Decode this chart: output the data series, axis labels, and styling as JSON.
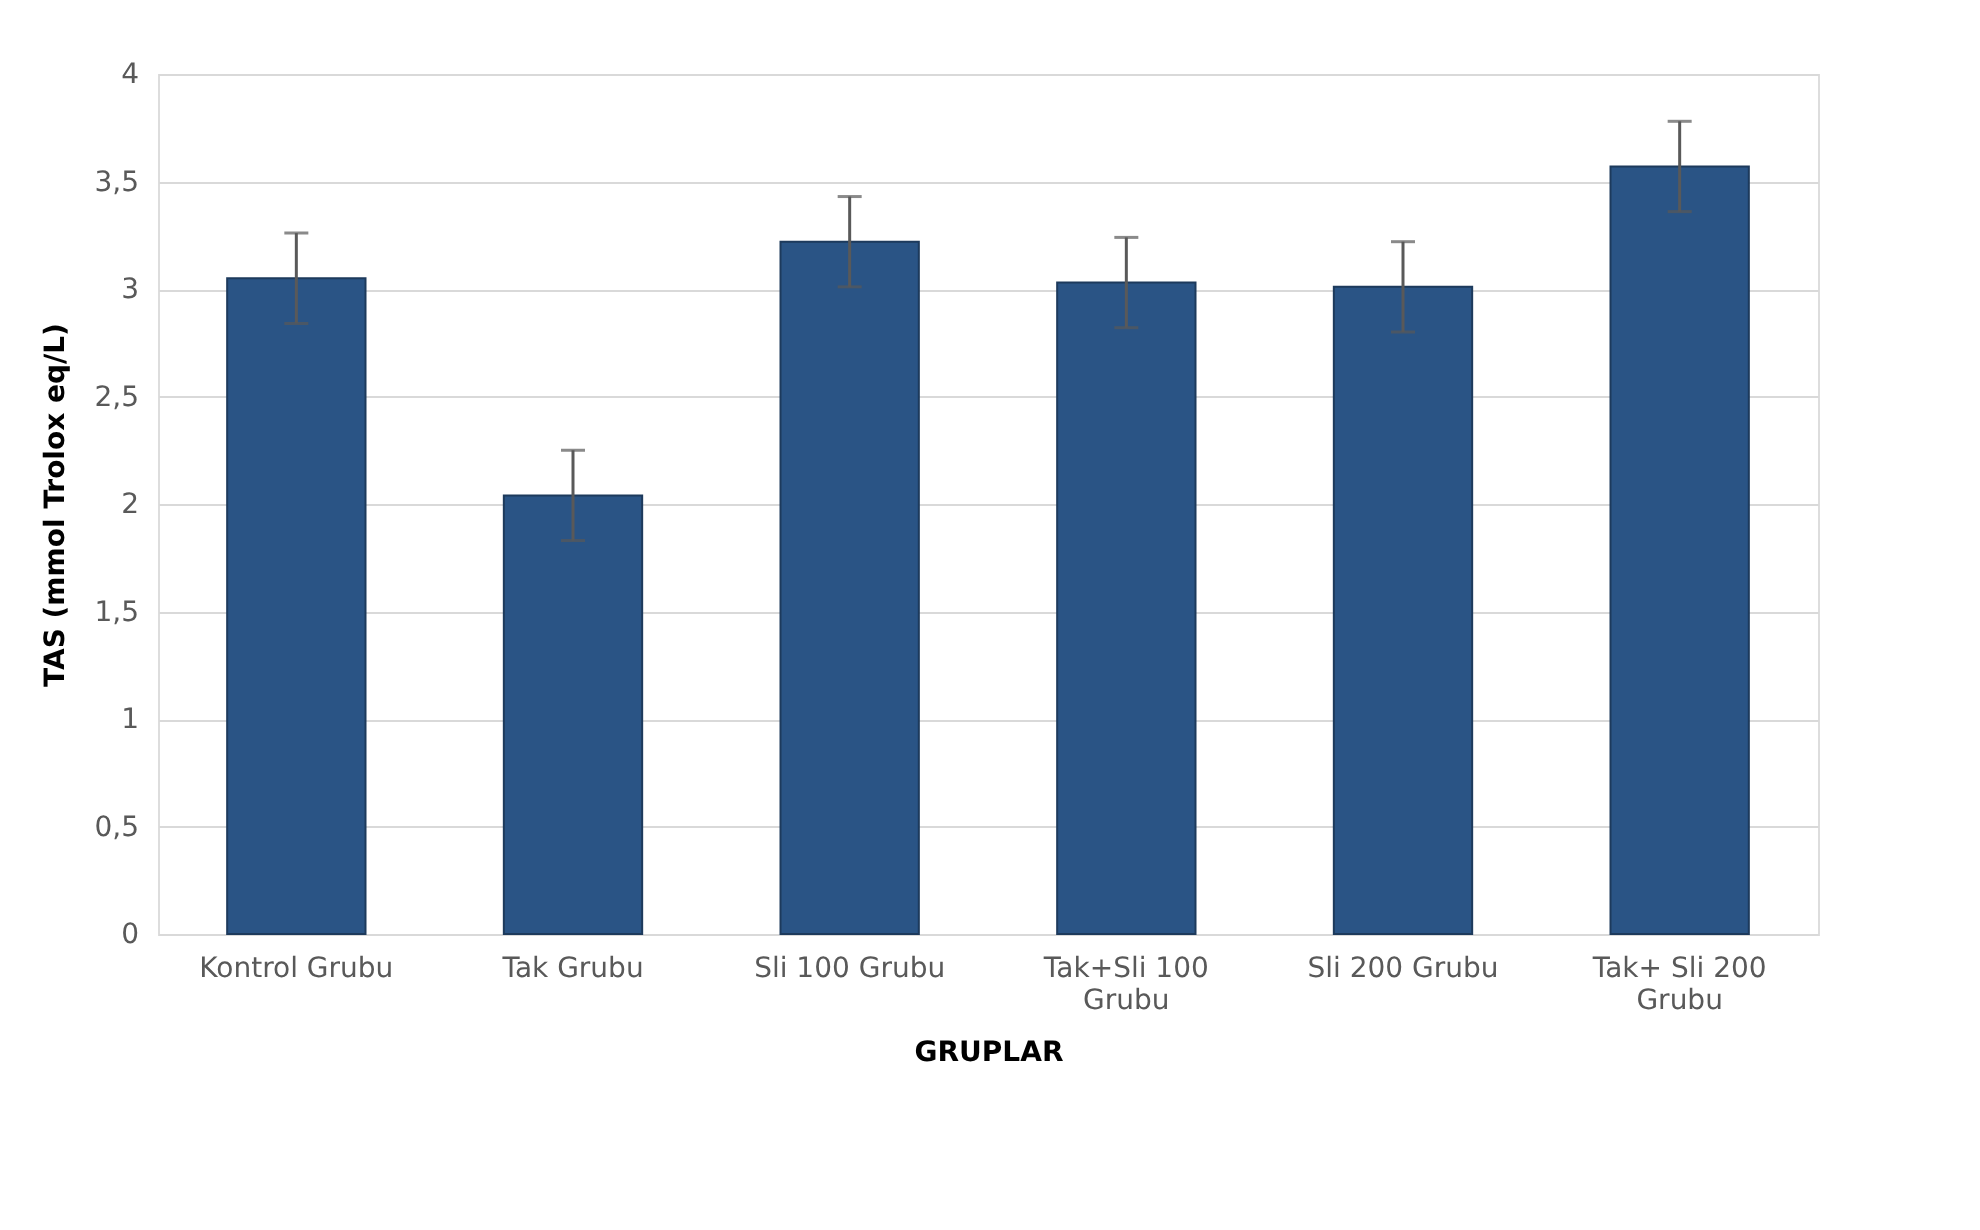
{
  "chart_data": {
    "type": "bar",
    "xlabel": "GRUPLAR",
    "ylabel": "TAS (mmol Trolox eq/L)",
    "categories": [
      "Kontrol Grubu",
      "Tak Grubu",
      "Sli 100 Grubu",
      "Tak+Sli 100 Grubu",
      "Sli 200 Grubu",
      "Tak+ Sli 200 Grubu"
    ],
    "values": [
      3.05,
      2.04,
      3.22,
      3.03,
      3.01,
      3.57
    ],
    "errors": [
      0.21,
      0.21,
      0.21,
      0.21,
      0.21,
      0.21
    ],
    "color": "#2a5485",
    "ylim": [
      0,
      4
    ],
    "yticks": [
      0,
      {
        "value": 0.5,
        "label": "0,5"
      },
      1,
      {
        "value": 1.5,
        "label": "1,5"
      },
      2,
      {
        "value": 2.5,
        "label": "2,5"
      },
      3,
      {
        "value": 3.5,
        "label": "3,5"
      },
      4
    ],
    "grid": "y"
  }
}
